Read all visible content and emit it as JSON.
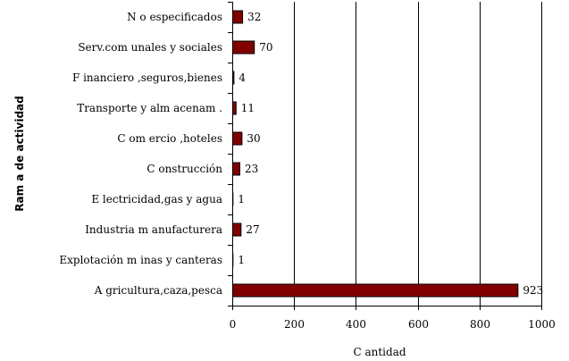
{
  "chart_data": {
    "type": "bar",
    "orientation": "horizontal",
    "categories": [
      "N o especificados",
      "Serv.com unales y sociales",
      "F inanciero ,seguros,bienes",
      "Transporte y alm acenam .",
      "C om ercio ,hoteles",
      "C onstrucción",
      "E lectricidad,gas y agua",
      "Industria m anufacturera",
      "Explotación m inas y canteras",
      "A gricultura,caza,pesca"
    ],
    "values": [
      32,
      70,
      4,
      11,
      30,
      23,
      1,
      27,
      1,
      923
    ],
    "data_labels": [
      "32",
      "70",
      "4",
      "11",
      "30",
      "23",
      "1",
      "27",
      "1",
      "923"
    ],
    "xlabel": "C antidad",
    "ylabel": "Ram a de actividad",
    "xlim": [
      0,
      1000
    ],
    "xticks": [
      0,
      200,
      400,
      600,
      800,
      1000
    ],
    "xtick_labels": [
      "0",
      "200",
      "400",
      "600",
      "800",
      "1000"
    ],
    "grid": "vertical",
    "legend": "none",
    "bar_color": "#800000"
  }
}
